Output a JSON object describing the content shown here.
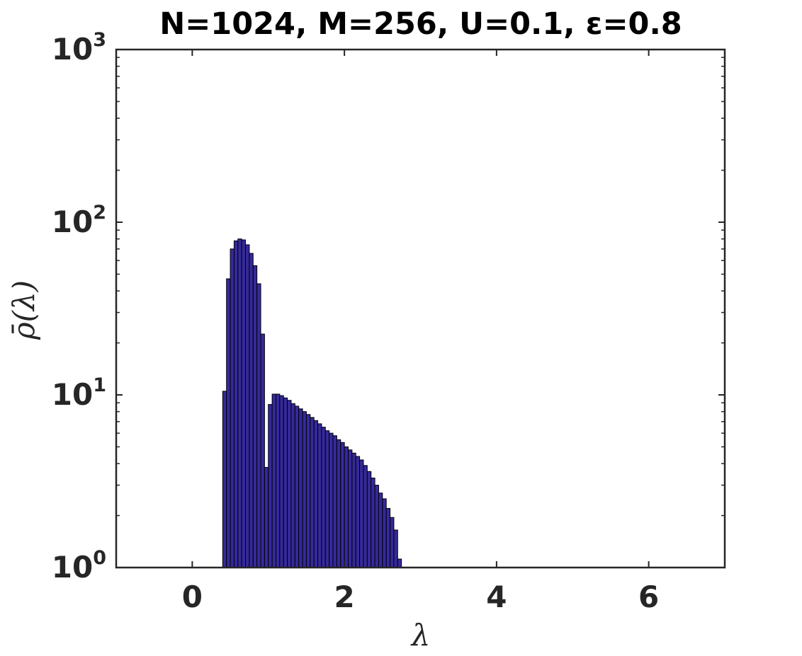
{
  "chart_data": {
    "type": "bar",
    "title": "N=1024, M=256, U=0.1, ε=0.8",
    "xlabel": "λ",
    "ylabel": "ρ̄(λ)",
    "xlim": [
      -1,
      7
    ],
    "ylim": [
      1,
      1000
    ],
    "yscale": "log",
    "xticks": [
      0,
      2,
      4,
      6
    ],
    "xtick_labels": [
      "0",
      "2",
      "4",
      "6"
    ],
    "yticks": [
      1,
      10,
      100,
      1000
    ],
    "ytick_labels": [
      {
        "base": "10",
        "exp": "0"
      },
      {
        "base": "10",
        "exp": "1"
      },
      {
        "base": "10",
        "exp": "2"
      },
      {
        "base": "10",
        "exp": "3"
      }
    ],
    "bin_width": 0.05,
    "bin_start": 0.4,
    "values": [
      10.5,
      47,
      70,
      78,
      80,
      79,
      74,
      66,
      56,
      44,
      22.5,
      3.8,
      8.8,
      10.1,
      10.1,
      9.9,
      9.6,
      9.3,
      8.9,
      8.6,
      8.3,
      8.0,
      7.7,
      7.4,
      7.1,
      6.8,
      6.5,
      6.2,
      6.0,
      5.8,
      5.5,
      5.3,
      5.0,
      4.8,
      4.6,
      4.4,
      4.2,
      3.9,
      3.6,
      3.3,
      3.0,
      2.7,
      2.5,
      2.2,
      1.95,
      1.65,
      1.12
    ],
    "grid": false,
    "box": true,
    "colors": {
      "bar_fill": "#35299b",
      "bar_edge": "#000000",
      "axis": "#262626"
    }
  }
}
